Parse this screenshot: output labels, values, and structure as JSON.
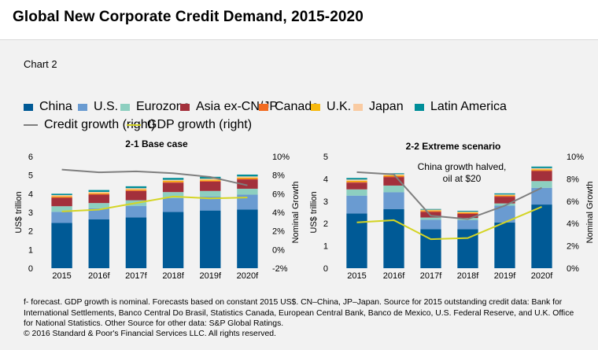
{
  "title": "Global New Corporate Credit Demand, 2015-2020",
  "subtitle": "Chart 2",
  "legend": {
    "bars": [
      {
        "label": "China",
        "color": "#005a96"
      },
      {
        "label": "U.S.",
        "color": "#6a9bd1"
      },
      {
        "label": "Eurozone",
        "color": "#8dcfc0"
      },
      {
        "label": "Asia ex-CN/JP",
        "color": "#a3303b"
      },
      {
        "label": "Canada",
        "color": "#f26b21"
      },
      {
        "label": "U.K.",
        "color": "#f7b90f"
      },
      {
        "label": "Japan",
        "color": "#f9cba2"
      },
      {
        "label": "Latin America",
        "color": "#008e99"
      }
    ],
    "lines": [
      {
        "label": "Credit growth (right)",
        "color": "#7f7f7f"
      },
      {
        "label": "GDP growth (right)",
        "color": "#d4d424"
      }
    ]
  },
  "chart_data": [
    {
      "type": "bar",
      "title": "2-1 Base case",
      "stacked": true,
      "categories": [
        "2015",
        "2016f",
        "2017f",
        "2018f",
        "2019f",
        "2020f"
      ],
      "ylabel": "US$ trillion",
      "y2label": "Nominal Growth",
      "ylim": [
        0,
        6
      ],
      "yticks": [
        "0",
        "1",
        "2",
        "3",
        "4",
        "5",
        "6"
      ],
      "y2lim": [
        -2,
        10
      ],
      "y2ticks": [
        "-2%",
        "0%",
        "2%",
        "4%",
        "6%",
        "8%",
        "10%"
      ],
      "annotation": "",
      "series": [
        {
          "name": "China",
          "values": [
            2.43,
            2.62,
            2.73,
            3.02,
            3.1,
            3.15
          ]
        },
        {
          "name": "U.S.",
          "values": [
            0.6,
            0.6,
            0.62,
            0.75,
            0.75,
            0.8
          ]
        },
        {
          "name": "Eurozone",
          "values": [
            0.3,
            0.28,
            0.3,
            0.32,
            0.3,
            0.32
          ]
        },
        {
          "name": "Asia ex-CN/JP",
          "values": [
            0.45,
            0.45,
            0.5,
            0.5,
            0.5,
            0.5
          ]
        },
        {
          "name": "Canada",
          "values": [
            0.05,
            0.05,
            0.05,
            0.05,
            0.05,
            0.05
          ]
        },
        {
          "name": "U.K.",
          "values": [
            0.04,
            0.04,
            0.04,
            0.05,
            0.05,
            0.05
          ]
        },
        {
          "name": "Japan",
          "values": [
            0.06,
            0.06,
            0.06,
            0.06,
            0.06,
            0.06
          ]
        },
        {
          "name": "Latin America",
          "values": [
            0.07,
            0.1,
            0.1,
            0.1,
            0.1,
            0.1
          ]
        }
      ],
      "lines": [
        {
          "name": "Credit growth (right)",
          "axis": "right",
          "values": [
            8.6,
            8.3,
            8.4,
            8.2,
            7.8,
            6.9
          ]
        },
        {
          "name": "GDP growth (right)",
          "axis": "right",
          "values": [
            4.1,
            4.3,
            5.0,
            5.7,
            5.5,
            5.6
          ]
        }
      ]
    },
    {
      "type": "bar",
      "title": "2-2 Extreme scenario",
      "stacked": true,
      "categories": [
        "2015",
        "2016f",
        "2017f",
        "2018f",
        "2019f",
        "2020f"
      ],
      "ylabel": "US$ trillion",
      "y2label": "Nominal Growth",
      "ylim": [
        0,
        5
      ],
      "yticks": [
        "0",
        "1",
        "2",
        "3",
        "4",
        "5"
      ],
      "y2lim": [
        0,
        10
      ],
      "y2ticks": [
        "0%",
        "2%",
        "4%",
        "6%",
        "8%",
        "10%"
      ],
      "annotation": "China growth halved,\noil at $20",
      "series": [
        {
          "name": "China",
          "values": [
            2.45,
            2.65,
            1.75,
            1.75,
            2.05,
            2.85
          ]
        },
        {
          "name": "U.S.",
          "values": [
            0.8,
            0.75,
            0.42,
            0.4,
            0.75,
            0.75
          ]
        },
        {
          "name": "Eurozone",
          "values": [
            0.28,
            0.3,
            0.1,
            0.1,
            0.1,
            0.3
          ]
        },
        {
          "name": "Asia ex-CN/JP",
          "values": [
            0.3,
            0.38,
            0.25,
            0.18,
            0.3,
            0.45
          ]
        },
        {
          "name": "Canada",
          "values": [
            0.04,
            0.04,
            0.04,
            0.04,
            0.04,
            0.04
          ]
        },
        {
          "name": "U.K.",
          "values": [
            0.04,
            0.04,
            0.03,
            0.03,
            0.03,
            0.04
          ]
        },
        {
          "name": "Japan",
          "values": [
            0.06,
            0.05,
            0.03,
            0.03,
            0.03,
            0.05
          ]
        },
        {
          "name": "Latin America",
          "values": [
            0.07,
            0.04,
            0.03,
            0.04,
            0.05,
            0.07
          ]
        }
      ],
      "lines": [
        {
          "name": "Credit growth (right)",
          "axis": "right",
          "values": [
            8.6,
            8.4,
            4.7,
            4.4,
            5.6,
            7.2
          ]
        },
        {
          "name": "GDP growth (right)",
          "axis": "right",
          "values": [
            4.1,
            4.3,
            2.6,
            2.7,
            4.1,
            5.5
          ]
        }
      ]
    }
  ],
  "footnote": "f- forecast. GDP growth is nominal. Forecasts based on constant 2015 US$. CN–China, JP–Japan. Source for 2015 outstanding credit data: Bank for International Settlements, Banco Central Do Brasil, Statistics Canada, European Central Bank, Banco de Mexico, U.S. Federal Reserve, and U.K. Office for National Statistics. Other Source for other data: S&P Global Ratings.",
  "copyright": "© 2016 Standard & Poor's Financial Services LLC. All rights reserved."
}
